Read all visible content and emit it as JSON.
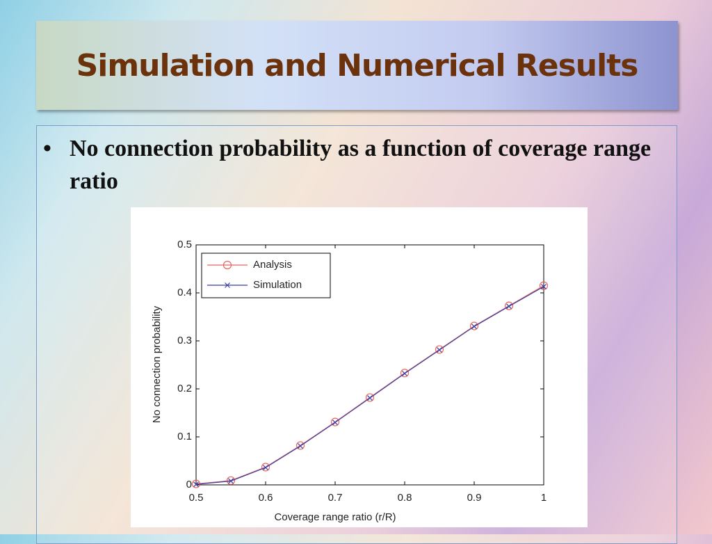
{
  "slide": {
    "title": "Simulation and Numerical Results",
    "bullet": "No connection probability as a function of coverage range ratio"
  },
  "chart_data": {
    "type": "line",
    "x_label": "Coverage range ratio (r/R)",
    "y_label": "No connection probability",
    "x": [
      0.5,
      0.55,
      0.6,
      0.65,
      0.7,
      0.75,
      0.8,
      0.85,
      0.9,
      0.95,
      1
    ],
    "series": [
      {
        "name": "Analysis",
        "color": "#e8645f",
        "marker": "circle",
        "values": [
          0.002,
          0.009,
          0.037,
          0.082,
          0.131,
          0.182,
          0.233,
          0.282,
          0.331,
          0.373,
          0.415
        ]
      },
      {
        "name": "Simulation",
        "color": "#3b3f9e",
        "marker": "x",
        "values": [
          0.001,
          0.008,
          0.036,
          0.081,
          0.13,
          0.181,
          0.232,
          0.281,
          0.33,
          0.372,
          0.413
        ]
      }
    ],
    "xlim": [
      0.5,
      1
    ],
    "ylim": [
      0,
      0.5
    ],
    "xticks": [
      0.5,
      0.6,
      0.7,
      0.8,
      0.9,
      1
    ],
    "yticks": [
      0,
      0.1,
      0.2,
      0.3,
      0.4,
      0.5
    ],
    "legend": "top-left",
    "grid": false
  }
}
